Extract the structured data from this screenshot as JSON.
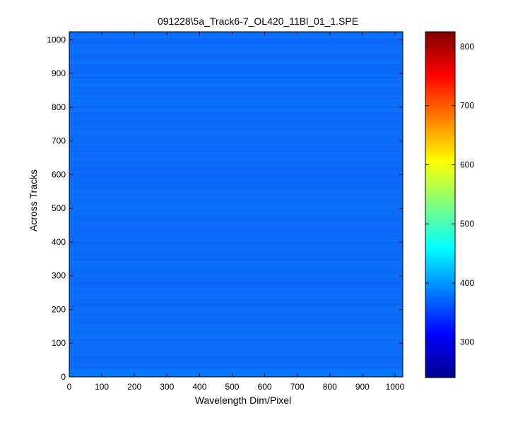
{
  "chart_data": {
    "type": "heatmap",
    "title": "091228\\5a_Track6-7_OL420_11Bl_01_1.SPE",
    "xlabel": "Wavelength Dim/Pixel",
    "ylabel": "Across Tracks",
    "xlim": [
      0,
      1024
    ],
    "ylim": [
      0,
      1024
    ],
    "xticks": [
      "0",
      "100",
      "200",
      "300",
      "400",
      "500",
      "600",
      "700",
      "800",
      "900",
      "1000"
    ],
    "yticks": [
      "0",
      "100",
      "200",
      "300",
      "400",
      "500",
      "600",
      "700",
      "800",
      "900",
      "1000"
    ],
    "colorbar": {
      "colormap": "jet",
      "clim": [
        240,
        825
      ],
      "ticks": [
        "300",
        "400",
        "500",
        "600",
        "700",
        "800"
      ]
    },
    "typical_value": 375,
    "value_range": [
      355,
      395
    ],
    "grid": false
  }
}
